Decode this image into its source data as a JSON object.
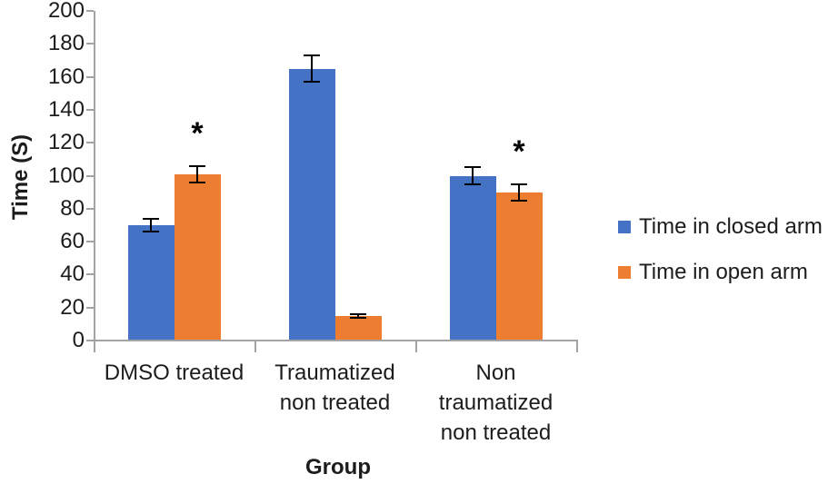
{
  "chart_data": {
    "type": "bar",
    "title": "",
    "xlabel": "Group",
    "ylabel": "Time (S)",
    "ylim": [
      0,
      200
    ],
    "ytick_step": 20,
    "yticks": [
      0,
      20,
      40,
      60,
      80,
      100,
      120,
      140,
      160,
      180,
      200
    ],
    "categories": [
      "DMSO treated",
      "Traumatized non treated",
      "Non traumatized non treated"
    ],
    "category_label_lines": [
      [
        "DMSO treated"
      ],
      [
        "Traumatized",
        "non treated"
      ],
      [
        "Non",
        "traumatized",
        "non treated"
      ]
    ],
    "series": [
      {
        "name": "Time in closed arm",
        "color": "#4472C4",
        "values": [
          70,
          165,
          100
        ],
        "errors": [
          4,
          8,
          5
        ]
      },
      {
        "name": "Time in open arm",
        "color": "#ED7D31",
        "values": [
          101,
          15,
          90
        ],
        "errors": [
          5,
          1,
          5
        ]
      }
    ],
    "annotations": [
      {
        "text": "*",
        "category_index": 0,
        "series_index": 1
      },
      {
        "text": "*",
        "category_index": 2,
        "series_index": 1
      }
    ],
    "legend_position": "right",
    "grid": false,
    "colors": {
      "axis": "#a3a3a3",
      "error_bar": "#000000",
      "text": "#1c1c1c"
    }
  }
}
